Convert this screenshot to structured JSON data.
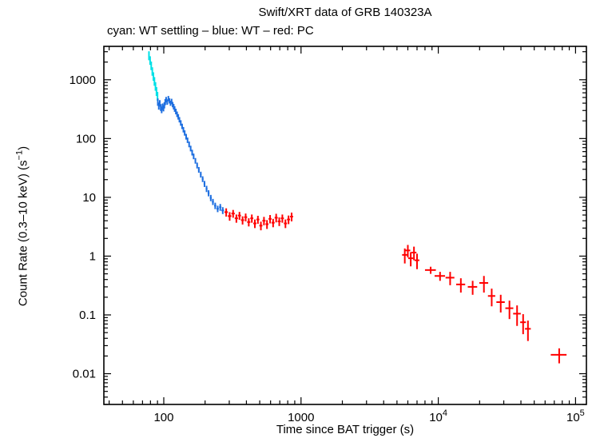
{
  "chart_data": {
    "type": "scatter",
    "title": "Swift/XRT data of GRB 140323A",
    "subtitle": "cyan: WT settling – blue: WT – red: PC",
    "xlabel": "Time since BAT trigger (s)",
    "ylabel": "Count Rate (0.3–10 keV) (s⁻¹)",
    "ylabel_parts": {
      "main": "Count Rate (0.3–10 keV) (s",
      "sup": "−1",
      "close": ")"
    },
    "x_scale": "log",
    "y_scale": "log",
    "x_range": [
      36.6,
      120000
    ],
    "y_range": [
      0.003,
      3700
    ],
    "grid": false,
    "legend_position": "subtitle-text",
    "x_ticks": [
      {
        "value": 100,
        "label": "100"
      },
      {
        "value": 1000,
        "label": "1000"
      },
      {
        "value": 10000,
        "label": "10",
        "exp": "4"
      },
      {
        "value": 100000,
        "label": "10",
        "exp": "5"
      }
    ],
    "y_ticks": [
      {
        "value": 0.01,
        "label": "0.01"
      },
      {
        "value": 0.1,
        "label": "0.1"
      },
      {
        "value": 1,
        "label": "1"
      },
      {
        "value": 10,
        "label": "10"
      },
      {
        "value": 100,
        "label": "100"
      },
      {
        "value": 1000,
        "label": "1000"
      }
    ],
    "point_format": [
      "t",
      "dt",
      "rate",
      "drate"
    ],
    "series": [
      {
        "name": "WT settling",
        "color": "#00e0e6",
        "points": [
          [
            78,
            0.7,
            2600,
            450
          ],
          [
            79.5,
            0.7,
            2150,
            360
          ],
          [
            81,
            0.7,
            1750,
            290
          ],
          [
            82.5,
            0.7,
            1400,
            230
          ],
          [
            84,
            0.7,
            1150,
            190
          ],
          [
            85.5,
            0.7,
            950,
            160
          ],
          [
            87,
            0.7,
            780,
            130
          ],
          [
            88.5,
            0.7,
            640,
            110
          ],
          [
            90,
            0.7,
            530,
            90
          ]
        ]
      },
      {
        "name": "WT",
        "color": "#1e6fe0",
        "points": [
          [
            90.5,
            0.7,
            420,
            60
          ],
          [
            92,
            0.7,
            360,
            50
          ],
          [
            93.5,
            0.7,
            400,
            50
          ],
          [
            95,
            0.7,
            340,
            45
          ],
          [
            96.5,
            0.7,
            310,
            40
          ],
          [
            98,
            0.7,
            350,
            45
          ],
          [
            99.5,
            0.7,
            330,
            40
          ],
          [
            101,
            0.8,
            370,
            45
          ],
          [
            102.5,
            0.8,
            420,
            50
          ],
          [
            104,
            0.9,
            460,
            50
          ],
          [
            106,
            0.9,
            420,
            45
          ],
          [
            108,
            0.9,
            480,
            50
          ],
          [
            110,
            0.9,
            440,
            45
          ],
          [
            112,
            0.9,
            400,
            40
          ],
          [
            114,
            0.9,
            430,
            45
          ],
          [
            116,
            0.9,
            380,
            40
          ],
          [
            118,
            0.9,
            350,
            38
          ],
          [
            120,
            0.9,
            320,
            35
          ],
          [
            122.5,
            1.1,
            290,
            32
          ],
          [
            125,
            1.1,
            260,
            28
          ],
          [
            127.5,
            1.1,
            235,
            25
          ],
          [
            130,
            1.1,
            210,
            22
          ],
          [
            133,
            1.3,
            185,
            20
          ],
          [
            136,
            1.3,
            162,
            17
          ],
          [
            139,
            1.3,
            142,
            15
          ],
          [
            142,
            1.3,
            125,
            13
          ],
          [
            145.5,
            1.5,
            108,
            12
          ],
          [
            149,
            1.5,
            94,
            10
          ],
          [
            153,
            1.7,
            80,
            9
          ],
          [
            157,
            1.7,
            68,
            7.5
          ],
          [
            161,
            1.7,
            58,
            6.5
          ],
          [
            165,
            1.9,
            50,
            5.5
          ],
          [
            170,
            2.1,
            42,
            4.6
          ],
          [
            175,
            2.1,
            35,
            4
          ],
          [
            180,
            2.3,
            29.5,
            3.3
          ],
          [
            186,
            2.5,
            24.5,
            2.8
          ],
          [
            192,
            2.7,
            20.5,
            2.3
          ],
          [
            198,
            2.9,
            17,
            2
          ],
          [
            205,
            3.1,
            14,
            1.7
          ],
          [
            212,
            3.3,
            11.8,
            1.4
          ],
          [
            220,
            3.7,
            9.8,
            1.2
          ],
          [
            228,
            3.9,
            8.4,
            1.0
          ],
          [
            237,
            4.3,
            7.2,
            0.9
          ],
          [
            247,
            4.7,
            6.4,
            0.8
          ],
          [
            258,
            5,
            6.8,
            0.9
          ],
          [
            269,
            6,
            6.0,
            0.8
          ]
        ]
      },
      {
        "name": "PC",
        "color": "#ff0000",
        "points": [
          [
            285,
            8,
            5.6,
            0.9
          ],
          [
            302,
            9,
            4.8,
            0.8
          ],
          [
            320,
            9,
            5.3,
            0.8
          ],
          [
            338,
            9,
            4.4,
            0.7
          ],
          [
            356,
            9,
            4.9,
            0.75
          ],
          [
            375,
            10,
            4.1,
            0.65
          ],
          [
            395,
            10,
            4.6,
            0.7
          ],
          [
            416,
            11,
            3.8,
            0.6
          ],
          [
            438,
            11,
            4.4,
            0.7
          ],
          [
            461,
            12,
            3.6,
            0.6
          ],
          [
            485,
            12,
            4.2,
            0.65
          ],
          [
            510,
            13,
            3.3,
            0.55
          ],
          [
            537,
            14,
            4.0,
            0.65
          ],
          [
            565,
            14,
            3.5,
            0.6
          ],
          [
            595,
            15,
            4.3,
            0.7
          ],
          [
            626,
            16,
            3.7,
            0.6
          ],
          [
            659,
            17,
            4.5,
            0.75
          ],
          [
            694,
            18,
            3.9,
            0.65
          ],
          [
            731,
            19,
            4.4,
            0.7
          ],
          [
            770,
            20,
            3.6,
            0.6
          ],
          [
            811,
            21,
            4.2,
            0.7
          ],
          [
            854,
            22,
            4.7,
            0.8
          ],
          [
            5700,
            250,
            1.05,
            0.3
          ],
          [
            6000,
            250,
            1.25,
            0.3
          ],
          [
            6300,
            260,
            0.92,
            0.25
          ],
          [
            6650,
            280,
            1.15,
            0.3
          ],
          [
            7000,
            280,
            0.85,
            0.25
          ],
          [
            8800,
            800,
            0.58,
            0.08
          ],
          [
            10300,
            900,
            0.46,
            0.08
          ],
          [
            12200,
            900,
            0.43,
            0.11
          ],
          [
            14600,
            1100,
            0.33,
            0.09
          ],
          [
            17800,
            1400,
            0.3,
            0.08
          ],
          [
            21500,
            1600,
            0.35,
            0.11
          ],
          [
            24500,
            1500,
            0.21,
            0.07
          ],
          [
            28500,
            2000,
            0.165,
            0.055
          ],
          [
            33000,
            2200,
            0.13,
            0.045
          ],
          [
            37500,
            2400,
            0.105,
            0.04
          ],
          [
            41500,
            2000,
            0.075,
            0.028
          ],
          [
            45000,
            2200,
            0.058,
            0.022
          ],
          [
            76000,
            10000,
            0.021,
            0.006
          ]
        ]
      }
    ]
  }
}
